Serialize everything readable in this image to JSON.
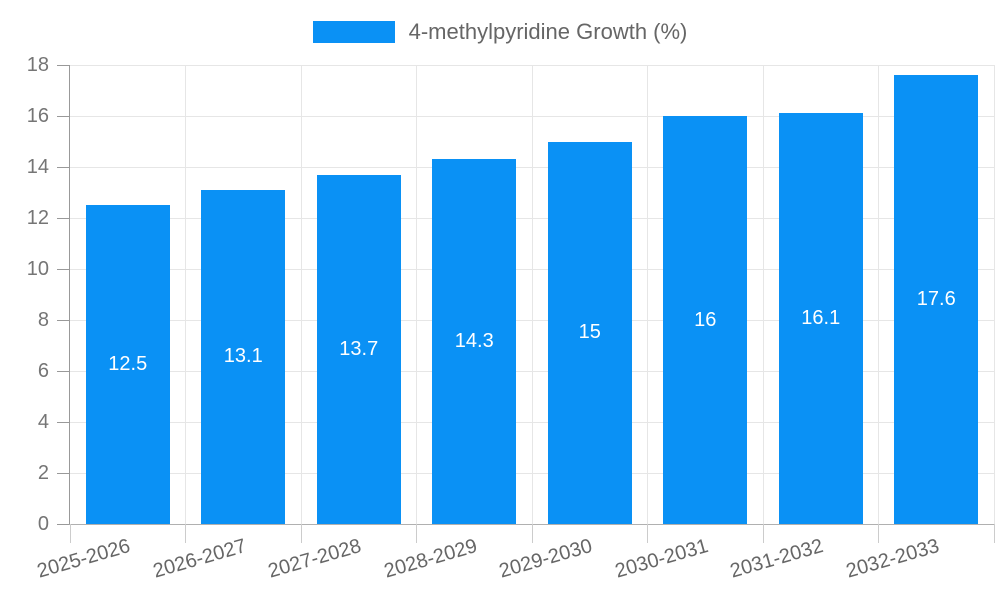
{
  "chart_data": {
    "type": "bar",
    "title": "",
    "legend": {
      "label": "4-methylpyridine Growth (%)",
      "position": "top-center"
    },
    "categories": [
      "2025-2026",
      "2026-2027",
      "2027-2028",
      "2028-2029",
      "2029-2030",
      "2030-2031",
      "2031-2032",
      "2032-2033"
    ],
    "series": [
      {
        "name": "4-methylpyridine Growth (%)",
        "values": [
          12.5,
          13.1,
          13.7,
          14.3,
          15,
          16,
          16.1,
          17.6
        ],
        "value_labels": [
          "12.5",
          "13.1",
          "13.7",
          "14.3",
          "15",
          "16",
          "16.1",
          "17.6"
        ]
      }
    ],
    "xlabel": "",
    "ylabel": "",
    "ylim": [
      0,
      18
    ],
    "yticks": [
      0,
      2,
      4,
      6,
      8,
      10,
      12,
      14,
      16,
      18
    ],
    "grid": true,
    "x_label_rotation_deg": -16,
    "colors": {
      "bar": "#0a91f5",
      "grid": "#e6e6e6",
      "axis_line_y": "#999999",
      "axis_line_x": "#b0b0b0",
      "tick_y": "#999999",
      "tick_x": "#cccccc",
      "ytick_label": "#757575",
      "xtick_label": "#666666",
      "legend_text": "#666666",
      "value_label": "#ffffff",
      "background": "#ffffff"
    }
  }
}
